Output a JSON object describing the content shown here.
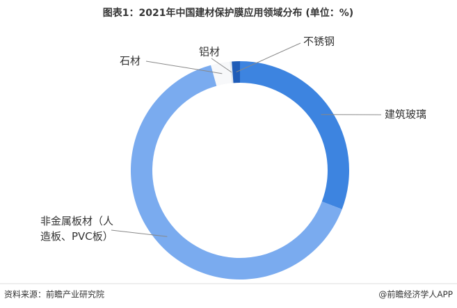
{
  "chart_data": {
    "type": "pie",
    "title": "图表1：2021年中国建材保护膜应用领域分布 (单位：%)",
    "categories": [
      "建筑玻璃",
      "非金属板材（人造板、PVC板）",
      "石材",
      "铝材",
      "不锈钢"
    ],
    "values": [
      30.8,
      64.9,
      2.8,
      0.3,
      1.2
    ],
    "colors": [
      "#3d84e0",
      "#7aabef",
      "#f7f8fa",
      "#e3e8ef",
      "#1f5cb8"
    ],
    "source": "资料来源：前瞻产业研究院",
    "footer": "@前瞻经济学人APP"
  }
}
